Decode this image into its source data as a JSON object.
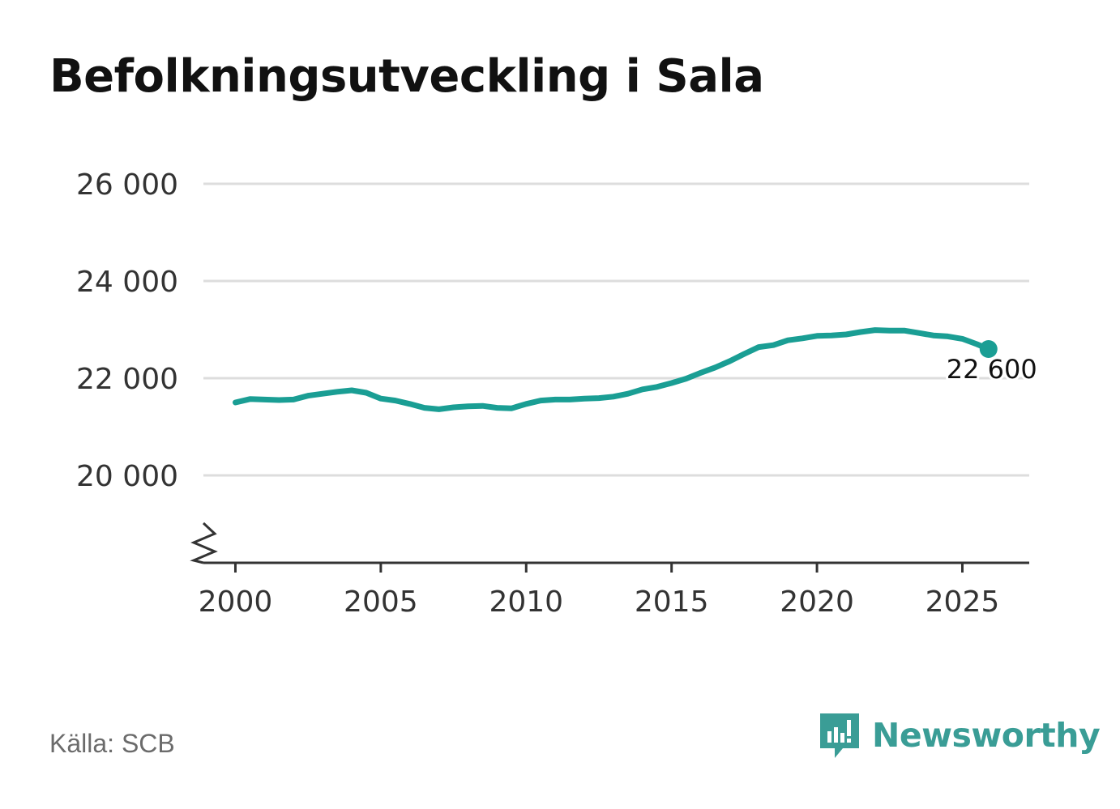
{
  "title": "Befolkningsutveckling i Sala",
  "source": "Källa: SCB",
  "brand": {
    "name": "Newsworthy"
  },
  "colors": {
    "line": "#1a9e94",
    "grid": "#dddddd",
    "axis": "#333333",
    "title": "#111111",
    "brand": "#3a9d96"
  },
  "chart_data": {
    "type": "line",
    "title": "Befolkningsutveckling i Sala",
    "xlabel": "",
    "ylabel": "",
    "xlim": [
      1998.9,
      2027.3
    ],
    "ylim": [
      18200,
      26000
    ],
    "y_ticks": [
      20000,
      22000,
      24000,
      26000
    ],
    "y_tick_labels": [
      "20 000",
      "22 000",
      "24 000",
      "26 000"
    ],
    "x_ticks": [
      2000,
      2005,
      2010,
      2015,
      2020,
      2025
    ],
    "x_tick_labels": [
      "2000",
      "2005",
      "2010",
      "2015",
      "2020",
      "2025"
    ],
    "grid": true,
    "axis_break": true,
    "series": [
      {
        "name": "Befolkning",
        "x": [
          2000.0,
          2000.5,
          2001.0,
          2001.5,
          2002.0,
          2002.5,
          2003.0,
          2003.5,
          2004.0,
          2004.5,
          2005.0,
          2005.5,
          2006.0,
          2006.5,
          2007.0,
          2007.5,
          2008.0,
          2008.5,
          2009.0,
          2009.5,
          2010.0,
          2010.5,
          2011.0,
          2011.5,
          2012.0,
          2012.5,
          2013.0,
          2013.5,
          2014.0,
          2014.5,
          2015.0,
          2015.5,
          2016.0,
          2016.5,
          2017.0,
          2017.5,
          2018.0,
          2018.5,
          2019.0,
          2019.5,
          2020.0,
          2020.5,
          2021.0,
          2021.5,
          2022.0,
          2022.5,
          2023.0,
          2023.5,
          2024.0,
          2024.5,
          2025.0,
          2025.5,
          2025.9
        ],
        "values": [
          21500,
          21570,
          21560,
          21550,
          21560,
          21640,
          21680,
          21720,
          21750,
          21700,
          21580,
          21540,
          21470,
          21390,
          21360,
          21400,
          21420,
          21430,
          21390,
          21380,
          21470,
          21540,
          21560,
          21560,
          21580,
          21590,
          21620,
          21680,
          21770,
          21820,
          21900,
          21990,
          22110,
          22220,
          22350,
          22500,
          22640,
          22680,
          22780,
          22820,
          22870,
          22880,
          22900,
          22950,
          22990,
          22980,
          22980,
          22930,
          22880,
          22860,
          22810,
          22700,
          22600
        ]
      }
    ],
    "annotations": [
      {
        "x": 2025.9,
        "y": 22600,
        "label": "22 600"
      }
    ]
  }
}
